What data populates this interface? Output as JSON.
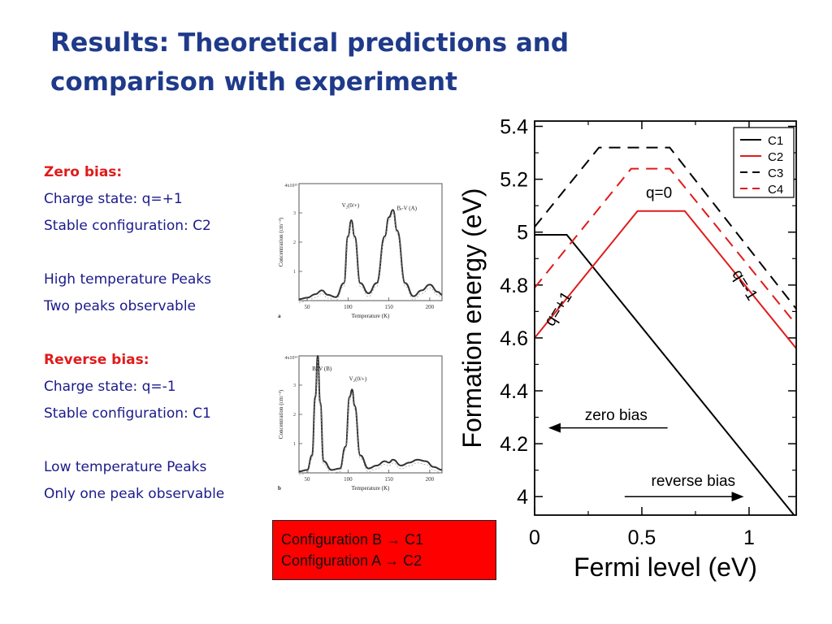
{
  "slide": {
    "title_lead": "Results:",
    "title_rest": " Theoretical predictions and comparison with experiment"
  },
  "notes": {
    "zero_heading": "Zero bias:",
    "zero_charge": "Charge state: q=+1",
    "zero_config": "Stable configuration: C2",
    "high_peaks": "High temperature Peaks",
    "high_two": "Two peaks observable",
    "reverse_heading": "Reverse bias:",
    "reverse_charge": "Charge state: q=-1",
    "reverse_config": "Stable configuration: C1",
    "low_peaks": "Low temperature Peaks",
    "low_one": "Only one peak observable"
  },
  "callout": {
    "line1": "Configuration B → C1",
    "line2": "Configuration A → C2",
    "background": "#ff0000"
  },
  "chart_data": [
    {
      "type": "line",
      "xlabel": "Fermi level (eV)",
      "ylabel": "Formation energy (eV)",
      "xlim": [
        0,
        1.22
      ],
      "ylim": [
        3.93,
        5.42
      ],
      "x_ticks": [
        "0",
        "0.5",
        "1"
      ],
      "y_ticks": [
        "4",
        "4.2",
        "4.4",
        "4.6",
        "4.8",
        "5",
        "5.2",
        "5.4"
      ],
      "x_tick_values": [
        0,
        0.5,
        1
      ],
      "y_tick_values": [
        4,
        4.2,
        4.4,
        4.6,
        4.8,
        5,
        5.2,
        5.4
      ],
      "legend_position": "top-right",
      "series": [
        {
          "name": "C1",
          "color": "#000000",
          "dash": "solid",
          "x": [
            0,
            0.15,
            1.22
          ],
          "y": [
            4.99,
            4.99,
            3.92
          ]
        },
        {
          "name": "C2",
          "color": "#e01b1b",
          "dash": "solid",
          "x": [
            0,
            0.48,
            0.7,
            1.22
          ],
          "y": [
            4.6,
            5.08,
            5.08,
            4.56
          ]
        },
        {
          "name": "C3",
          "color": "#000000",
          "dash": "dashed",
          "x": [
            0,
            0.3,
            0.63,
            1.22
          ],
          "y": [
            5.02,
            5.32,
            5.32,
            4.71
          ]
        },
        {
          "name": "C4",
          "color": "#e01b1b",
          "dash": "dashed",
          "x": [
            0,
            0.45,
            0.63,
            1.22
          ],
          "y": [
            4.79,
            5.24,
            5.24,
            4.65
          ]
        }
      ],
      "annotations": [
        {
          "text": "q=0",
          "x": 0.58,
          "y": 5.13
        },
        {
          "text": "q=+1",
          "x": 0.13,
          "y": 4.7,
          "rotate": -58
        },
        {
          "text": "q=-1",
          "x": 0.96,
          "y": 4.79,
          "rotate": 58
        },
        {
          "text": "zero bias",
          "x": 0.38,
          "y": 4.29,
          "arrow": "left",
          "arrow_from": 0.62,
          "arrow_to": 0.07,
          "arrow_y": 4.26
        },
        {
          "text": "reverse bias",
          "x": 0.74,
          "y": 4.04,
          "arrow": "right",
          "arrow_from": 0.42,
          "arrow_to": 0.97,
          "arrow_y": 4.0
        }
      ]
    },
    {
      "type": "line",
      "panel_label": "a",
      "xlabel": "Temperature (K)",
      "ylabel": "Concentration (cm⁻³)",
      "y_axis_max_label": "4x10¹³",
      "xlim": [
        40,
        215
      ],
      "ylim": [
        0,
        4
      ],
      "x_ticks": [
        "50",
        "100",
        "150",
        "200"
      ],
      "x_tick_values": [
        50,
        100,
        150,
        200
      ],
      "y_ticks": [
        "1",
        "2",
        "3"
      ],
      "y_tick_values": [
        1,
        2,
        3
      ],
      "annotations": [
        {
          "text": "V₂(0/+)",
          "x": 103,
          "y": 3.2
        },
        {
          "text": "Bᵢ-V (A)",
          "x": 172,
          "y": 3.1
        }
      ],
      "series": [
        {
          "name": "",
          "x": [
            40,
            50,
            60,
            68,
            75,
            85,
            95,
            100,
            104,
            108,
            115,
            125,
            135,
            145,
            150,
            155,
            160,
            170,
            180,
            190,
            200,
            210,
            215
          ],
          "y": [
            0.05,
            0.1,
            0.22,
            0.35,
            0.2,
            0.12,
            0.6,
            2.2,
            2.75,
            2.2,
            0.6,
            0.25,
            0.6,
            2.2,
            2.85,
            3.1,
            2.4,
            0.6,
            0.15,
            0.35,
            0.55,
            0.3,
            0.2
          ]
        }
      ]
    },
    {
      "type": "line",
      "panel_label": "b",
      "xlabel": "Temperature (K)",
      "ylabel": "Concentration (cm⁻³)",
      "y_axis_max_label": "4x10¹³",
      "xlim": [
        40,
        215
      ],
      "ylim": [
        0,
        4
      ],
      "x_ticks": [
        "50",
        "100",
        "150",
        "200"
      ],
      "x_tick_values": [
        50,
        100,
        150,
        200
      ],
      "y_ticks": [
        "1",
        "2",
        "3"
      ],
      "y_tick_values": [
        1,
        2,
        3
      ],
      "annotations": [
        {
          "text": "Bᵢ-V (B)",
          "x": 68,
          "y": 3.5
        },
        {
          "text": "V₂(0/+)",
          "x": 112,
          "y": 3.15
        }
      ],
      "series": [
        {
          "name": "",
          "x": [
            40,
            50,
            56,
            60,
            63,
            66,
            70,
            80,
            90,
            97,
            102,
            105,
            108,
            115,
            125,
            135,
            145,
            150,
            155,
            165,
            175,
            185,
            195,
            205,
            215
          ],
          "y": [
            0.05,
            0.1,
            0.6,
            2.6,
            4.0,
            2.4,
            0.4,
            0.1,
            0.15,
            0.9,
            2.6,
            2.85,
            2.3,
            0.6,
            0.15,
            0.25,
            0.4,
            0.35,
            0.45,
            0.25,
            0.35,
            0.45,
            0.4,
            0.2,
            0.1
          ]
        }
      ]
    }
  ]
}
